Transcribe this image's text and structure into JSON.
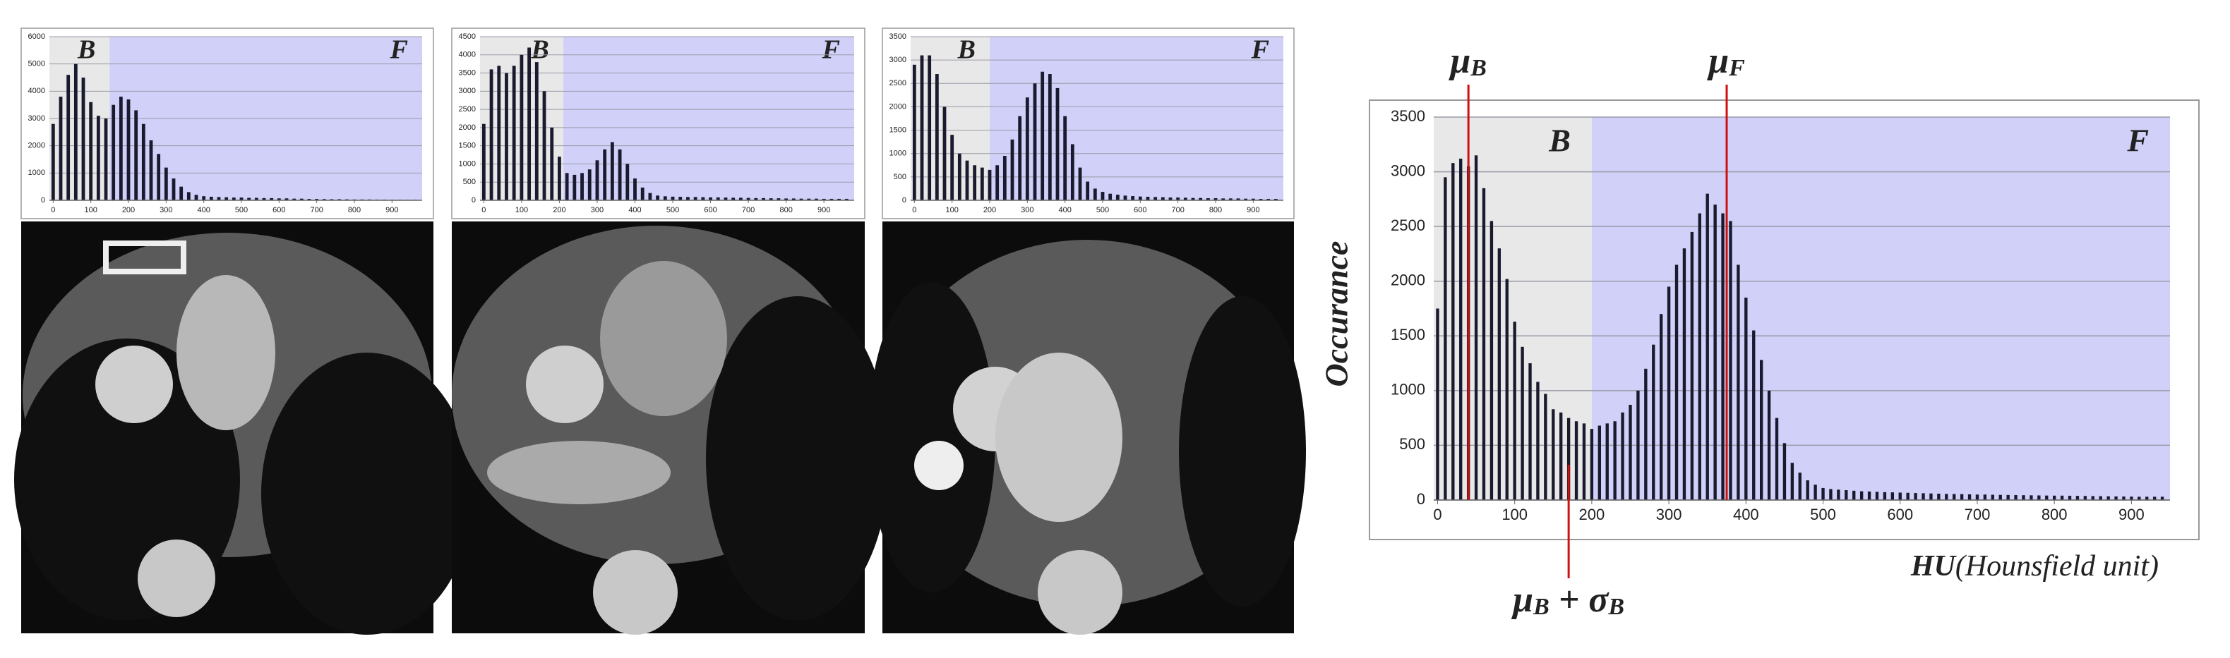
{
  "chart_data": [
    {
      "type": "bar",
      "color": "#1a1a2e",
      "x": [
        0,
        20,
        40,
        60,
        80,
        100,
        120,
        140,
        160,
        180,
        200,
        220,
        240,
        260,
        280,
        300,
        320,
        340,
        360,
        380,
        400,
        420,
        440,
        460,
        480,
        500,
        520,
        540,
        560,
        580,
        600,
        620,
        640,
        660,
        680,
        700,
        720,
        740,
        760,
        780,
        800,
        820,
        840,
        860,
        880,
        900,
        920,
        940,
        960
      ],
      "values": [
        2800,
        3800,
        4600,
        5000,
        4500,
        3600,
        3100,
        3000,
        3500,
        3800,
        3700,
        3300,
        2800,
        2200,
        1700,
        1200,
        800,
        500,
        300,
        200,
        150,
        130,
        120,
        110,
        100,
        100,
        90,
        90,
        80,
        80,
        70,
        70,
        60,
        60,
        50,
        50,
        45,
        40,
        40,
        35,
        30,
        30,
        30,
        25,
        25,
        20,
        20,
        20,
        20
      ],
      "xlim": [
        -10,
        980
      ],
      "ylim": [
        0,
        6000
      ],
      "xticks": [
        0,
        100,
        200,
        300,
        400,
        500,
        600,
        700,
        800,
        900
      ],
      "yticks": [
        0,
        1000,
        2000,
        3000,
        4000,
        5000,
        6000
      ],
      "grid": true,
      "regions": [
        {
          "label": "B",
          "range": [
            -10,
            150
          ],
          "color": "#e8e8e8"
        },
        {
          "label": "F",
          "range": [
            150,
            980
          ],
          "color": "#d0d0f8"
        }
      ]
    },
    {
      "type": "bar",
      "color": "#1a1a2e",
      "x": [
        0,
        20,
        40,
        60,
        80,
        100,
        120,
        140,
        160,
        180,
        200,
        220,
        240,
        260,
        280,
        300,
        320,
        340,
        360,
        380,
        400,
        420,
        440,
        460,
        480,
        500,
        520,
        540,
        560,
        580,
        600,
        620,
        640,
        660,
        680,
        700,
        720,
        740,
        760,
        780,
        800,
        820,
        840,
        860,
        880,
        900,
        920,
        940,
        960
      ],
      "values": [
        2100,
        3600,
        3700,
        3500,
        3700,
        4000,
        4200,
        3800,
        3000,
        2000,
        1200,
        750,
        700,
        750,
        850,
        1100,
        1400,
        1600,
        1400,
        1000,
        600,
        350,
        200,
        130,
        110,
        100,
        95,
        90,
        90,
        85,
        80,
        80,
        75,
        70,
        70,
        65,
        60,
        60,
        55,
        55,
        50,
        50,
        45,
        45,
        45,
        40,
        40,
        40,
        40
      ],
      "xlim": [
        -10,
        980
      ],
      "ylim": [
        0,
        4500
      ],
      "xticks": [
        0,
        100,
        200,
        300,
        400,
        500,
        600,
        700,
        800,
        900
      ],
      "yticks": [
        0,
        500,
        1000,
        1500,
        2000,
        2500,
        3000,
        3500,
        4000,
        4500
      ],
      "grid": true,
      "regions": [
        {
          "label": "B",
          "range": [
            -10,
            210
          ],
          "color": "#e8e8e8"
        },
        {
          "label": "F",
          "range": [
            210,
            980
          ],
          "color": "#d0d0f8"
        }
      ]
    },
    {
      "type": "bar",
      "color": "#1a1a2e",
      "x": [
        0,
        20,
        40,
        60,
        80,
        100,
        120,
        140,
        160,
        180,
        200,
        220,
        240,
        260,
        280,
        300,
        320,
        340,
        360,
        380,
        400,
        420,
        440,
        460,
        480,
        500,
        520,
        540,
        560,
        580,
        600,
        620,
        640,
        660,
        680,
        700,
        720,
        740,
        760,
        780,
        800,
        820,
        840,
        860,
        880,
        900,
        920,
        940,
        960
      ],
      "values": [
        2900,
        3100,
        3100,
        2700,
        2000,
        1400,
        1000,
        850,
        750,
        700,
        650,
        750,
        950,
        1300,
        1800,
        2200,
        2500,
        2750,
        2700,
        2400,
        1800,
        1200,
        700,
        400,
        250,
        180,
        140,
        120,
        100,
        90,
        80,
        75,
        70,
        65,
        60,
        60,
        55,
        50,
        50,
        45,
        45,
        40,
        40,
        40,
        35,
        35,
        30,
        30,
        30
      ],
      "xlim": [
        -10,
        980
      ],
      "ylim": [
        0,
        3500
      ],
      "xticks": [
        0,
        100,
        200,
        300,
        400,
        500,
        600,
        700,
        800,
        900
      ],
      "yticks": [
        0,
        500,
        1000,
        1500,
        2000,
        2500,
        3000,
        3500
      ],
      "grid": true,
      "regions": [
        {
          "label": "B",
          "range": [
            -10,
            200
          ],
          "color": "#e8e8e8"
        },
        {
          "label": "F",
          "range": [
            200,
            980
          ],
          "color": "#d0d0f8"
        }
      ]
    },
    {
      "type": "bar",
      "color": "#1a1a2e",
      "x": [
        0,
        10,
        20,
        30,
        40,
        50,
        60,
        70,
        80,
        90,
        100,
        110,
        120,
        130,
        140,
        150,
        160,
        170,
        180,
        190,
        200,
        210,
        220,
        230,
        240,
        250,
        260,
        270,
        280,
        290,
        300,
        310,
        320,
        330,
        340,
        350,
        360,
        370,
        380,
        390,
        400,
        410,
        420,
        430,
        440,
        450,
        460,
        470,
        480,
        490,
        500,
        510,
        520,
        530,
        540,
        550,
        560,
        570,
        580,
        590,
        600,
        610,
        620,
        630,
        640,
        650,
        660,
        670,
        680,
        690,
        700,
        710,
        720,
        730,
        740,
        750,
        760,
        770,
        780,
        790,
        800,
        810,
        820,
        830,
        840,
        850,
        860,
        870,
        880,
        890,
        900,
        910,
        920,
        930,
        940
      ],
      "values": [
        1750,
        2950,
        3080,
        3120,
        3050,
        3150,
        2850,
        2550,
        2300,
        2020,
        1630,
        1400,
        1250,
        1080,
        970,
        830,
        800,
        750,
        720,
        700,
        650,
        680,
        700,
        720,
        800,
        870,
        1000,
        1200,
        1420,
        1700,
        1950,
        2150,
        2300,
        2450,
        2620,
        2800,
        2700,
        2620,
        2550,
        2150,
        1850,
        1550,
        1280,
        1000,
        750,
        520,
        340,
        250,
        180,
        140,
        110,
        100,
        95,
        90,
        85,
        80,
        78,
        75,
        72,
        70,
        68,
        66,
        64,
        62,
        60,
        58,
        56,
        55,
        54,
        52,
        50,
        50,
        48,
        47,
        46,
        45,
        44,
        43,
        42,
        41,
        40,
        40,
        39,
        38,
        37,
        36,
        35,
        34,
        33,
        32,
        31,
        30,
        30,
        30,
        30
      ],
      "xlim": [
        -5,
        950
      ],
      "ylim": [
        0,
        3500
      ],
      "xticks": [
        0,
        100,
        200,
        300,
        400,
        500,
        600,
        700,
        800,
        900
      ],
      "yticks": [
        0,
        500,
        1000,
        1500,
        2000,
        2500,
        3000,
        3500
      ],
      "grid": true,
      "regions": [
        {
          "label": "B",
          "range": [
            -5,
            200
          ],
          "color": "#e8e8e8"
        },
        {
          "label": "F",
          "range": [
            200,
            950
          ],
          "color": "#d0d0f8"
        }
      ],
      "ylabel": "Occurance",
      "xlabel_bold": "HU",
      "xlabel": "(Hounsfield unit)",
      "annotations": [
        {
          "x": 40,
          "side": "top",
          "parts": [
            {
              "text": "μ",
              "sub": "B"
            }
          ]
        },
        {
          "x": 375,
          "side": "top",
          "parts": [
            {
              "text": "μ",
              "sub": "F"
            }
          ]
        },
        {
          "x": 170,
          "side": "bottom",
          "parts": [
            {
              "text": "μ",
              "sub": "B"
            },
            {
              "text": " + σ",
              "sub": "B"
            }
          ]
        }
      ]
    }
  ]
}
